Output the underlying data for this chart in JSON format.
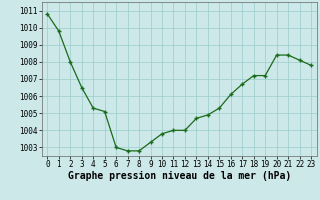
{
  "x": [
    0,
    1,
    2,
    3,
    4,
    5,
    6,
    7,
    8,
    9,
    10,
    11,
    12,
    13,
    14,
    15,
    16,
    17,
    18,
    19,
    20,
    21,
    22,
    23
  ],
  "y": [
    1010.8,
    1009.8,
    1008.0,
    1006.5,
    1005.3,
    1005.1,
    1003.0,
    1002.8,
    1002.8,
    1003.3,
    1003.8,
    1004.0,
    1004.0,
    1004.7,
    1004.9,
    1005.3,
    1006.1,
    1006.7,
    1007.2,
    1007.2,
    1008.4,
    1008.4,
    1008.1,
    1007.8
  ],
  "line_color": "#1a6b1a",
  "marker_color": "#1a6b1a",
  "bg_color": "#cce8e8",
  "grid_color": "#99cccc",
  "xlabel": "Graphe pression niveau de la mer (hPa)",
  "xlabel_fontsize": 7,
  "tick_fontsize": 5.5,
  "ylim": [
    1002.5,
    1011.5
  ],
  "yticks": [
    1003,
    1004,
    1005,
    1006,
    1007,
    1008,
    1009,
    1010,
    1011
  ],
  "xticks": [
    0,
    1,
    2,
    3,
    4,
    5,
    6,
    7,
    8,
    9,
    10,
    11,
    12,
    13,
    14,
    15,
    16,
    17,
    18,
    19,
    20,
    21,
    22,
    23
  ],
  "xlim": [
    -0.5,
    23.5
  ]
}
